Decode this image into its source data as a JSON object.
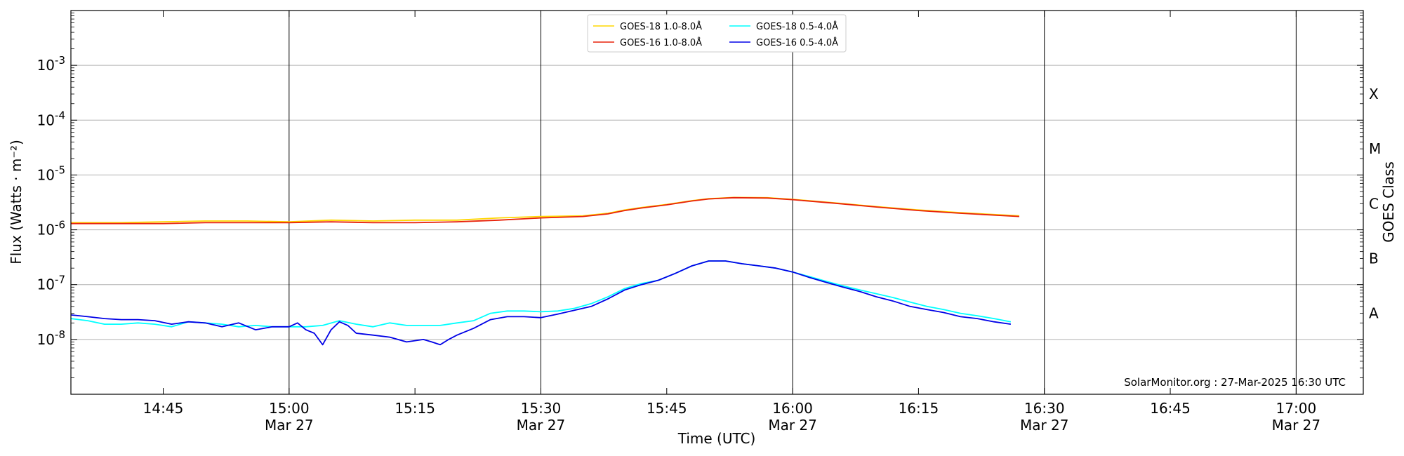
{
  "chart_data": {
    "type": "line",
    "xlabel": "Time (UTC)",
    "ylabel": "Flux (Watts · m⁻²)",
    "y2label": "GOES Class",
    "yscale": "log",
    "ylim": [
      1e-09,
      0.01
    ],
    "xlim": [
      "14:34",
      "17:08"
    ],
    "grid": true,
    "legend": "top-center",
    "credit": "SolarMonitor.org : 27-Mar-2025 16:30 UTC",
    "ytick_labels": [
      {
        "exp": "-8",
        "value": 1e-08
      },
      {
        "exp": "-7",
        "value": 1e-07
      },
      {
        "exp": "-6",
        "value": 1e-06
      },
      {
        "exp": "-5",
        "value": 1e-05
      },
      {
        "exp": "-4",
        "value": 0.0001
      },
      {
        "exp": "-3",
        "value": 0.001
      }
    ],
    "xticks": [
      {
        "time": "14:45",
        "label": "14:45",
        "date": ""
      },
      {
        "time": "15:00",
        "label": "15:00",
        "date": "Mar 27"
      },
      {
        "time": "15:15",
        "label": "15:15",
        "date": ""
      },
      {
        "time": "15:30",
        "label": "15:30",
        "date": "Mar 27"
      },
      {
        "time": "15:45",
        "label": "15:45",
        "date": ""
      },
      {
        "time": "16:00",
        "label": "16:00",
        "date": "Mar 27"
      },
      {
        "time": "16:15",
        "label": "16:15",
        "date": ""
      },
      {
        "time": "16:30",
        "label": "16:30",
        "date": "Mar 27"
      },
      {
        "time": "16:45",
        "label": "16:45",
        "date": ""
      },
      {
        "time": "17:00",
        "label": "17:00",
        "date": "Mar 27"
      }
    ],
    "class_labels": [
      {
        "label": "A",
        "value": 3e-08
      },
      {
        "label": "B",
        "value": 3e-07
      },
      {
        "label": "C",
        "value": 3e-06
      },
      {
        "label": "M",
        "value": 3e-05
      },
      {
        "label": "X",
        "value": 0.0003
      }
    ],
    "series": [
      {
        "name": "GOES-18 1.0-8.0Å",
        "color": "#ffd700",
        "x": [
          "14:34",
          "14:40",
          "14:45",
          "14:50",
          "14:55",
          "15:00",
          "15:05",
          "15:10",
          "15:15",
          "15:20",
          "15:25",
          "15:30",
          "15:35",
          "15:38",
          "15:40",
          "15:42",
          "15:45",
          "15:48",
          "15:50",
          "15:53",
          "15:57",
          "16:00",
          "16:05",
          "16:10",
          "16:15",
          "16:20",
          "16:27"
        ],
        "values": [
          1.35e-06,
          1.35e-06,
          1.4e-06,
          1.45e-06,
          1.45e-06,
          1.4e-06,
          1.5e-06,
          1.45e-06,
          1.5e-06,
          1.5e-06,
          1.65e-06,
          1.75e-06,
          1.8e-06,
          2e-06,
          2.3e-06,
          2.55e-06,
          2.9e-06,
          3.4e-06,
          3.7e-06,
          3.9e-06,
          3.85e-06,
          3.6e-06,
          3.1e-06,
          2.65e-06,
          2.3e-06,
          2.05e-06,
          1.8e-06
        ]
      },
      {
        "name": "GOES-16 1.0-8.0Å",
        "color": "#e8220a",
        "x": [
          "14:34",
          "14:40",
          "14:45",
          "14:50",
          "14:55",
          "15:00",
          "15:05",
          "15:10",
          "15:15",
          "15:20",
          "15:25",
          "15:30",
          "15:35",
          "15:38",
          "15:40",
          "15:42",
          "15:45",
          "15:48",
          "15:50",
          "15:53",
          "15:57",
          "16:00",
          "16:05",
          "16:10",
          "16:15",
          "16:20",
          "16:27"
        ],
        "values": [
          1.3e-06,
          1.3e-06,
          1.3e-06,
          1.35e-06,
          1.35e-06,
          1.35e-06,
          1.4e-06,
          1.35e-06,
          1.35e-06,
          1.4e-06,
          1.5e-06,
          1.65e-06,
          1.75e-06,
          1.95e-06,
          2.25e-06,
          2.5e-06,
          2.85e-06,
          3.35e-06,
          3.65e-06,
          3.85e-06,
          3.8e-06,
          3.55e-06,
          3.05e-06,
          2.6e-06,
          2.25e-06,
          2e-06,
          1.75e-06
        ]
      },
      {
        "name": "GOES-18 0.5-4.0Å",
        "color": "#00ffff",
        "x": [
          "14:34",
          "14:36",
          "14:38",
          "14:40",
          "14:42",
          "14:44",
          "14:46",
          "14:48",
          "14:50",
          "14:52",
          "14:54",
          "14:56",
          "14:58",
          "15:00",
          "15:02",
          "15:04",
          "15:06",
          "15:08",
          "15:10",
          "15:12",
          "15:14",
          "15:16",
          "15:18",
          "15:20",
          "15:22",
          "15:24",
          "15:26",
          "15:28",
          "15:30",
          "15:32",
          "15:34",
          "15:36",
          "15:38",
          "15:40",
          "15:42",
          "15:44",
          "15:46",
          "15:48",
          "15:50",
          "15:52",
          "15:54",
          "15:56",
          "15:58",
          "16:00",
          "16:02",
          "16:04",
          "16:06",
          "16:08",
          "16:10",
          "16:12",
          "16:14",
          "16:16",
          "16:18",
          "16:20",
          "16:22",
          "16:24",
          "16:26"
        ],
        "values": [
          2.4e-08,
          2.2e-08,
          1.9e-08,
          1.9e-08,
          2e-08,
          1.9e-08,
          1.7e-08,
          2.1e-08,
          2e-08,
          1.9e-08,
          1.7e-08,
          1.8e-08,
          1.7e-08,
          1.7e-08,
          1.7e-08,
          1.8e-08,
          2.2e-08,
          1.9e-08,
          1.7e-08,
          2e-08,
          1.8e-08,
          1.8e-08,
          1.8e-08,
          2e-08,
          2.2e-08,
          3e-08,
          3.3e-08,
          3.3e-08,
          3.2e-08,
          3.3e-08,
          3.7e-08,
          4.5e-08,
          6e-08,
          8.5e-08,
          1.05e-07,
          1.2e-07,
          1.6e-07,
          2.2e-07,
          2.7e-07,
          2.7e-07,
          2.4e-07,
          2.2e-07,
          2e-07,
          1.7e-07,
          1.4e-07,
          1.15e-07,
          9.5e-08,
          8e-08,
          6.8e-08,
          5.8e-08,
          4.8e-08,
          4e-08,
          3.5e-08,
          3e-08,
          2.7e-08,
          2.4e-08,
          2.1e-08
        ]
      },
      {
        "name": "GOES-16 0.5-4.0Å",
        "color": "#0000e6",
        "x": [
          "14:34",
          "14:36",
          "14:38",
          "14:40",
          "14:42",
          "14:44",
          "14:46",
          "14:48",
          "14:50",
          "14:52",
          "14:54",
          "14:56",
          "14:58",
          "15:00",
          "15:01",
          "15:02",
          "15:03",
          "15:04",
          "15:05",
          "15:06",
          "15:07",
          "15:08",
          "15:10",
          "15:12",
          "15:14",
          "15:16",
          "15:17",
          "15:18",
          "15:19",
          "15:20",
          "15:22",
          "15:24",
          "15:26",
          "15:28",
          "15:30",
          "15:32",
          "15:34",
          "15:36",
          "15:38",
          "15:40",
          "15:42",
          "15:44",
          "15:46",
          "15:48",
          "15:50",
          "15:52",
          "15:54",
          "15:56",
          "15:58",
          "16:00",
          "16:02",
          "16:04",
          "16:06",
          "16:08",
          "16:10",
          "16:12",
          "16:14",
          "16:16",
          "16:18",
          "16:20",
          "16:22",
          "16:24",
          "16:26"
        ],
        "values": [
          2.8e-08,
          2.6e-08,
          2.4e-08,
          2.3e-08,
          2.3e-08,
          2.2e-08,
          1.9e-08,
          2.1e-08,
          2e-08,
          1.7e-08,
          2e-08,
          1.5e-08,
          1.7e-08,
          1.7e-08,
          2e-08,
          1.5e-08,
          1.3e-08,
          8e-09,
          1.5e-08,
          2.1e-08,
          1.8e-08,
          1.3e-08,
          1.2e-08,
          1.1e-08,
          9e-09,
          1e-08,
          9e-09,
          8e-09,
          1e-08,
          1.2e-08,
          1.6e-08,
          2.3e-08,
          2.6e-08,
          2.6e-08,
          2.5e-08,
          2.9e-08,
          3.4e-08,
          4e-08,
          5.5e-08,
          8e-08,
          1e-07,
          1.2e-07,
          1.6e-07,
          2.2e-07,
          2.7e-07,
          2.7e-07,
          2.4e-07,
          2.2e-07,
          2e-07,
          1.7e-07,
          1.35e-07,
          1.1e-07,
          9e-08,
          7.5e-08,
          6e-08,
          5e-08,
          4e-08,
          3.5e-08,
          3.1e-08,
          2.6e-08,
          2.4e-08,
          2.1e-08,
          1.9e-08
        ]
      }
    ]
  }
}
